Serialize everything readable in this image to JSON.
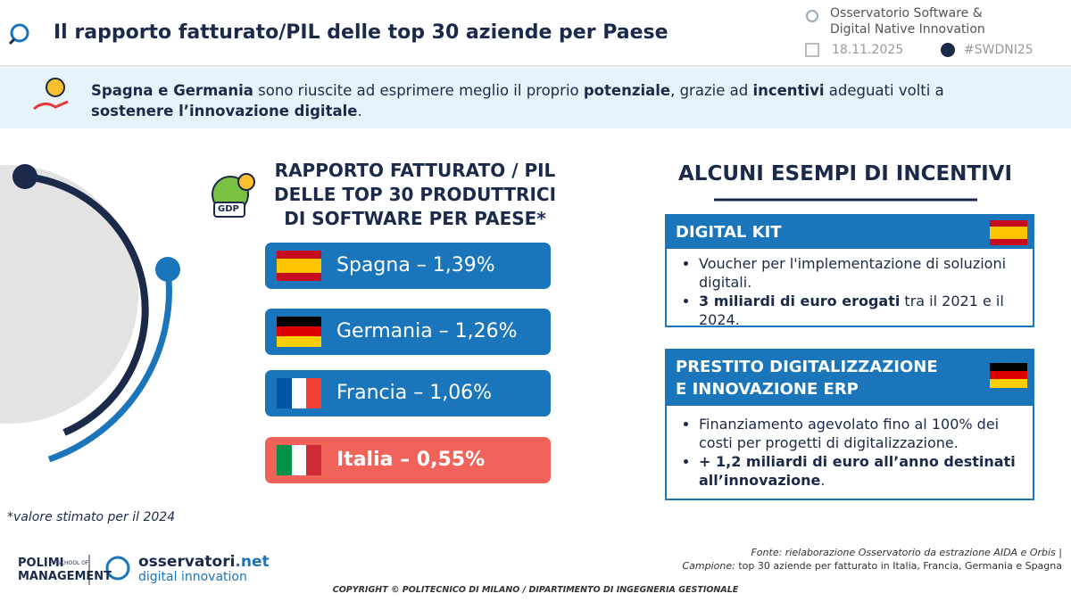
{
  "header": {
    "title": "Il rapporto fatturato/PIL delle top 30 aziende per Paese",
    "event": [
      "Osservatorio Software &",
      "Digital Native Innovation"
    ],
    "date": "18.11.2025",
    "hashtag": "#SWDNI25"
  },
  "banner": {
    "text": [
      "Spagna e Germania",
      " sono riuscite ad esprimere meglio il proprio ",
      "potenziale",
      ", grazie ad ",
      "incentivi",
      " adeguati volti a ",
      "sostenere l’innovazione digitale",
      "."
    ]
  },
  "ratio_panel": {
    "icon_label": "GDP",
    "title": [
      "RAPPORTO FATTURATO / PIL",
      "DELLE TOP 30 PRODUTTRICI",
      "DI SOFTWARE PER PAESE*"
    ],
    "items": [
      "Spagna – 1,39%",
      "Germania – 1,26%",
      "Francia – 1,06%",
      "Italia – 0,55%"
    ],
    "footnote": "*valore stimato per il 2024"
  },
  "incentives": {
    "title": "ALCUNI ESEMPI DI INCENTIVI",
    "cards": [
      {
        "title": [
          "DIGITAL KIT"
        ],
        "bullets": [
          [
            "Voucher per l'implementazione di soluzioni digitali."
          ],
          [
            "3 miliardi di euro erogati",
            " tra il 2021 e il 2024."
          ]
        ]
      },
      {
        "title": [
          "PRESTITO DIGITALIZZAZIONE",
          "E INNOVAZIONE ERP"
        ],
        "bullets": [
          [
            "Finanziamento agevolato fino al 100% dei costi per progetti di digitalizzazione."
          ],
          [
            "+ 1,2 miliardi di euro all’anno destinati all’innovazione",
            "."
          ]
        ]
      }
    ]
  },
  "footer": {
    "logo_polimi": [
      "POLIMI",
      "SCHOOL OF",
      "MANAGEMENT"
    ],
    "logo_osservatori": [
      "osservatori",
      ".net",
      "digital innovation"
    ],
    "source": [
      "Fonte: rielaborazione Osservatorio da estrazione AIDA e Orbis |",
      "Campione:",
      " top 30 aziende per fatturato in Italia, Francia, Germania e Spagna"
    ],
    "copyright": "COPYRIGHT © POLITECNICO DI MILANO / DIPARTIMENTO DI INGEGNERIA GESTIONALE"
  }
}
